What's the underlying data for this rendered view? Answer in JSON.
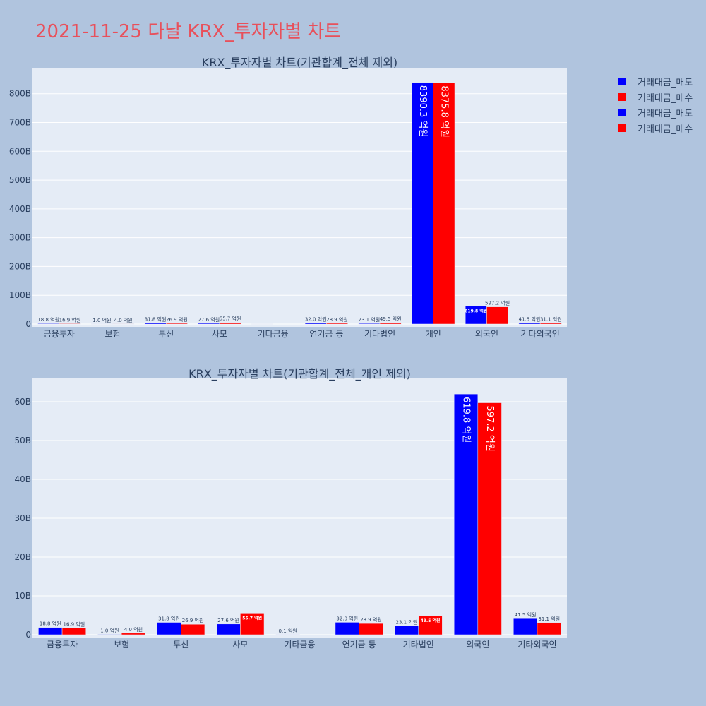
{
  "page_title": "2021-11-25 다날 KRX_투자자별 차트",
  "legend": [
    {
      "label": "거래대금_매도",
      "color": "#0000ff"
    },
    {
      "label": "거래대금_매수",
      "color": "#ff0000"
    },
    {
      "label": "거래대금_매도",
      "color": "#0000ff"
    },
    {
      "label": "거래대금_매수",
      "color": "#ff0000"
    }
  ],
  "chart_data": [
    {
      "type": "bar",
      "title": "KRX_투자자별 차트(기관합계_전체 제외)",
      "categories": [
        "금융투자",
        "보험",
        "투신",
        "사모",
        "기타금융",
        "연기금 등",
        "기타법인",
        "개인",
        "외국인",
        "기타외국인"
      ],
      "series": [
        {
          "name": "거래대금_매도",
          "color": "#0000ff",
          "values": [
            1.88,
            0.1,
            3.18,
            2.76,
            0.01,
            3.2,
            2.31,
            839.03,
            61.98,
            4.15
          ],
          "labels": [
            "18.8 억원",
            "1.0 억원",
            "31.8 억원",
            "27.6 억원",
            "",
            "32.0 억원",
            "23.1 억원",
            "8390.3 억원",
            "619.8 억원",
            "41.5 억원"
          ]
        },
        {
          "name": "거래대금_매수",
          "color": "#ff0000",
          "values": [
            1.69,
            0.4,
            2.69,
            5.57,
            0.0,
            2.89,
            4.95,
            837.58,
            59.72,
            3.11
          ],
          "labels": [
            "16.9 억원",
            "4.0 억원",
            "26.9 억원",
            "55.7 억원",
            "",
            "28.9 억원",
            "49.5 억원",
            "8375.8 억원",
            "597.2 억원",
            "31.1 억원"
          ]
        }
      ],
      "ylim": [
        0,
        890
      ],
      "yticks": [
        0,
        100,
        200,
        300,
        400,
        500,
        600,
        700,
        800
      ],
      "ytick_labels": [
        "0",
        "100B",
        "200B",
        "300B",
        "400B",
        "500B",
        "600B",
        "700B",
        "800B"
      ],
      "grid": true
    },
    {
      "type": "bar",
      "title": "KRX_투자자별 차트(기관합계_전체_개인 제외)",
      "categories": [
        "금융투자",
        "보험",
        "투신",
        "사모",
        "기타금융",
        "연기금 등",
        "기타법인",
        "외국인",
        "기타외국인"
      ],
      "series": [
        {
          "name": "거래대금_매도",
          "color": "#0000ff",
          "values": [
            1.88,
            0.1,
            3.18,
            2.76,
            0.01,
            3.2,
            2.31,
            61.98,
            4.15
          ],
          "labels": [
            "18.8 억원",
            "1.0 억원",
            "31.8 억원",
            "27.6 억원",
            "0.1 억원",
            "32.0 억원",
            "23.1 억원",
            "619.8 억원",
            "41.5 억원"
          ]
        },
        {
          "name": "거래대금_매수",
          "color": "#ff0000",
          "values": [
            1.69,
            0.4,
            2.69,
            5.57,
            0.0,
            2.89,
            4.95,
            59.72,
            3.11
          ],
          "labels": [
            "16.9 억원",
            "4.0 억원",
            "26.9 억원",
            "55.7 억원",
            "",
            "28.9 억원",
            "49.5 억원",
            "597.2 억원",
            "31.1 억원"
          ]
        }
      ],
      "ylim": [
        0,
        66
      ],
      "yticks": [
        0,
        10,
        20,
        30,
        40,
        50,
        60
      ],
      "ytick_labels": [
        "0",
        "10B",
        "20B",
        "30B",
        "40B",
        "50B",
        "60B"
      ],
      "grid": true
    }
  ]
}
